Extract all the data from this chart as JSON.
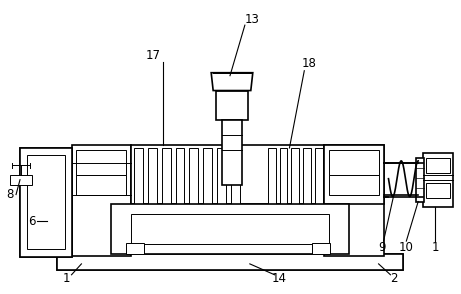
{
  "background_color": "#ffffff",
  "line_color": "#000000",
  "lw": 1.2,
  "tlw": 0.7,
  "figsize": [
    4.61,
    2.94
  ],
  "dpi": 100
}
